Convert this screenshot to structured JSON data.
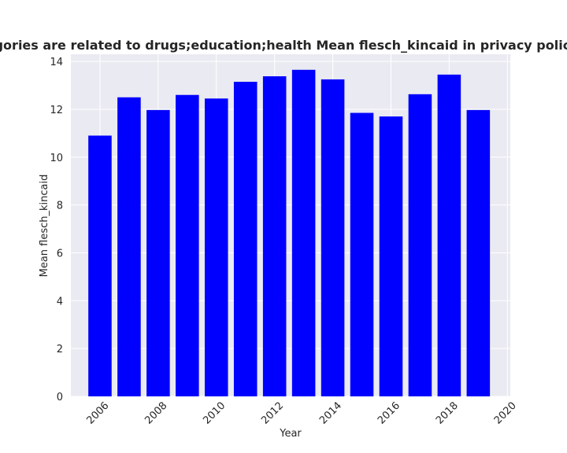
{
  "chart_data": {
    "type": "bar",
    "title": "When categories are related to drugs;education;health Mean flesch_kincaid in privacy policies by year",
    "xlabel": "Year",
    "ylabel": "Mean flesch_kincaid",
    "x": [
      2006,
      2007,
      2008,
      2009,
      2010,
      2011,
      2012,
      2013,
      2014,
      2015,
      2016,
      2017,
      2018,
      2019
    ],
    "values": [
      10.9,
      12.5,
      11.97,
      12.6,
      12.45,
      13.15,
      13.38,
      13.65,
      13.25,
      11.85,
      11.7,
      12.63,
      13.45,
      11.97
    ],
    "xlim": [
      2005,
      2020.1
    ],
    "ylim": [
      0,
      14.3
    ],
    "xticks": [
      2006,
      2008,
      2010,
      2012,
      2014,
      2016,
      2018,
      2020
    ],
    "yticks": [
      0,
      2,
      4,
      6,
      8,
      10,
      12,
      14
    ],
    "bar_color": "#0000ff",
    "background": "#eaeaf2",
    "grid": true,
    "legend": false
  }
}
